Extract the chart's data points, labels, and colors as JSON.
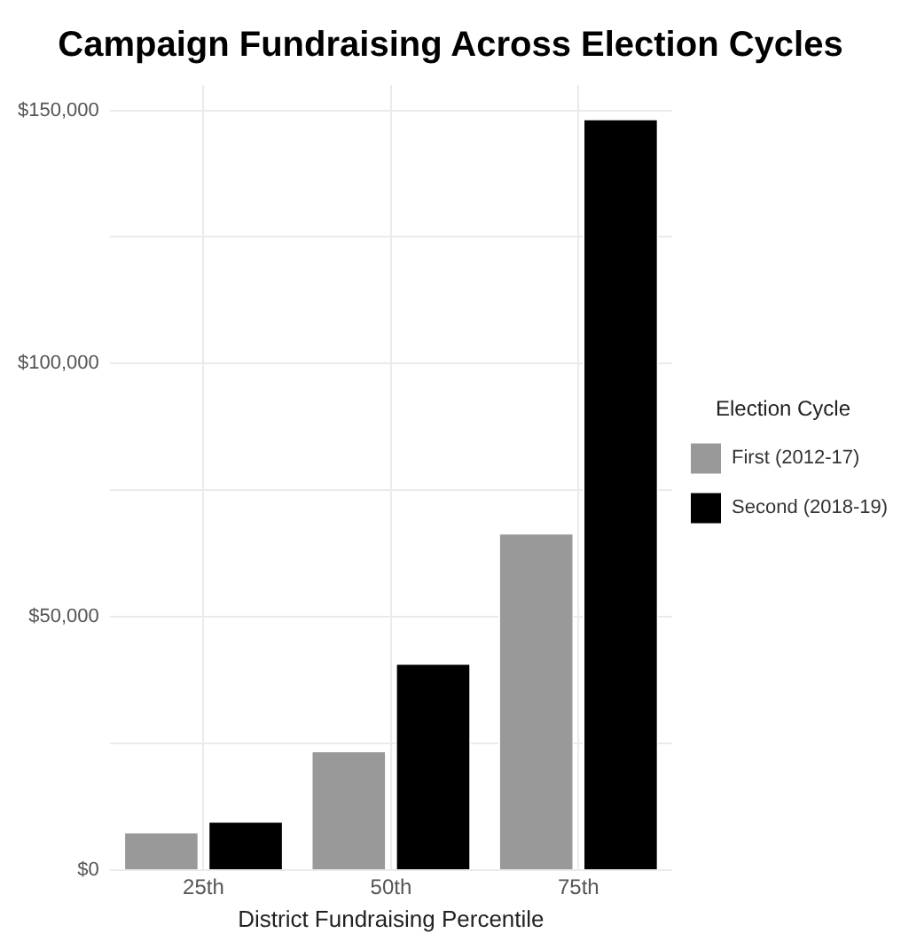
{
  "chart_data": {
    "type": "bar",
    "title": "Campaign Fundraising Across Election Cycles",
    "xlabel": "District Fundraising Percentile",
    "legend_title": "Election Cycle",
    "categories": [
      "25th",
      "50th",
      "75th"
    ],
    "series": [
      {
        "name": "First (2012-17)",
        "color": "#999999",
        "values": [
          7600,
          23600,
          66600
        ]
      },
      {
        "name": "Second (2018-19)",
        "color": "#000000",
        "values": [
          9700,
          40900,
          148400
        ]
      }
    ],
    "ylim": [
      0,
      155000
    ],
    "yticks": [
      {
        "value": 0,
        "label": "$0"
      },
      {
        "value": 25000,
        "label": null
      },
      {
        "value": 50000,
        "label": "$50,000"
      },
      {
        "value": 75000,
        "label": null
      },
      {
        "value": 100000,
        "label": "$100,000"
      },
      {
        "value": 125000,
        "label": null
      },
      {
        "value": 150000,
        "label": "$150,000"
      }
    ],
    "grid": true,
    "legend": "right"
  }
}
